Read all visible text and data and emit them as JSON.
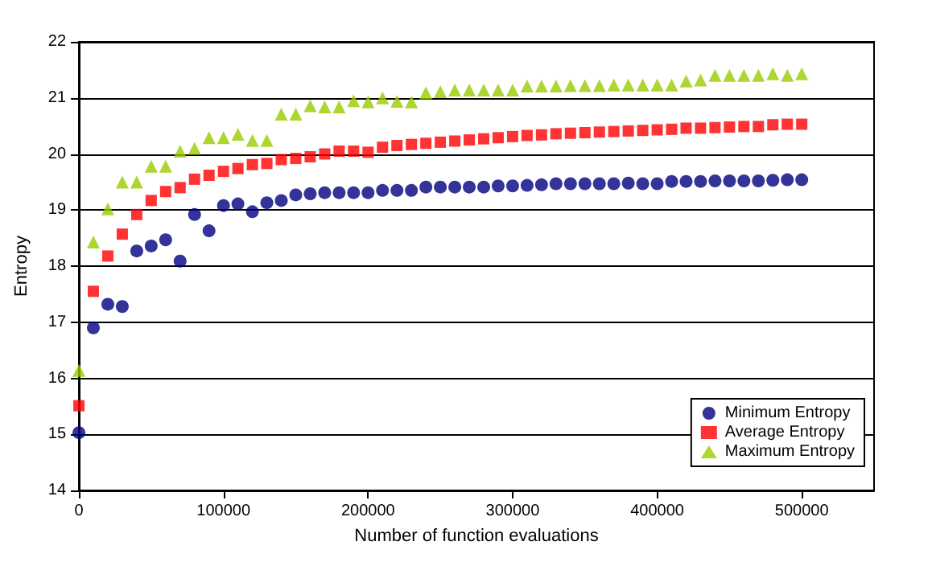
{
  "chart_data": {
    "type": "scatter",
    "xlabel": "Number of function evaluations",
    "ylabel": "Entropy",
    "x": [
      0,
      10000,
      20000,
      30000,
      40000,
      50000,
      60000,
      70000,
      80000,
      90000,
      100000,
      110000,
      120000,
      130000,
      140000,
      150000,
      160000,
      170000,
      180000,
      190000,
      200000,
      210000,
      220000,
      230000,
      240000,
      250000,
      260000,
      270000,
      280000,
      290000,
      300000,
      310000,
      320000,
      330000,
      340000,
      350000,
      360000,
      370000,
      380000,
      390000,
      400000,
      410000,
      420000,
      430000,
      440000,
      450000,
      460000,
      470000,
      480000,
      490000,
      500000
    ],
    "series": [
      {
        "name": "Minimum Entropy",
        "color": "#000080",
        "marker": "circle",
        "values": [
          15.03,
          16.9,
          17.32,
          17.28,
          18.27,
          18.36,
          18.47,
          18.09,
          18.92,
          18.63,
          19.08,
          19.11,
          18.97,
          19.13,
          19.17,
          19.27,
          19.29,
          19.31,
          19.31,
          19.31,
          19.31,
          19.35,
          19.35,
          19.35,
          19.41,
          19.41,
          19.41,
          19.41,
          19.41,
          19.43,
          19.43,
          19.44,
          19.45,
          19.47,
          19.47,
          19.47,
          19.47,
          19.47,
          19.48,
          19.47,
          19.47,
          19.51,
          19.51,
          19.51,
          19.52,
          19.52,
          19.52,
          19.52,
          19.53,
          19.54,
          19.54
        ]
      },
      {
        "name": "Average Entropy",
        "color": "#ff0000",
        "marker": "square",
        "values": [
          15.51,
          17.55,
          18.18,
          18.57,
          18.92,
          19.17,
          19.33,
          19.4,
          19.55,
          19.62,
          19.69,
          19.74,
          19.81,
          19.83,
          19.9,
          19.92,
          19.95,
          20.0,
          20.05,
          20.05,
          20.03,
          20.12,
          20.15,
          20.17,
          20.19,
          20.21,
          20.23,
          20.25,
          20.27,
          20.29,
          20.31,
          20.33,
          20.34,
          20.36,
          20.37,
          20.38,
          20.39,
          20.4,
          20.41,
          20.42,
          20.43,
          20.44,
          20.46,
          20.46,
          20.47,
          20.48,
          20.49,
          20.49,
          20.52,
          20.53,
          20.53
        ]
      },
      {
        "name": "Maximum Entropy",
        "color": "#99cc00",
        "marker": "triangle",
        "values": [
          16.14,
          18.43,
          19.02,
          19.5,
          19.5,
          19.78,
          19.78,
          20.05,
          20.1,
          20.29,
          20.29,
          20.35,
          20.24,
          20.24,
          20.71,
          20.71,
          20.86,
          20.84,
          20.84,
          20.95,
          20.93,
          21.0,
          20.94,
          20.93,
          21.09,
          21.11,
          21.14,
          21.14,
          21.14,
          21.14,
          21.14,
          21.21,
          21.21,
          21.21,
          21.22,
          21.22,
          21.22,
          21.23,
          21.23,
          21.23,
          21.23,
          21.23,
          21.3,
          21.32,
          21.4,
          21.4,
          21.4,
          21.4,
          21.43,
          21.4,
          21.43
        ]
      }
    ],
    "xlim": [
      0,
      550000
    ],
    "xticks": [
      0,
      100000,
      200000,
      300000,
      400000,
      500000
    ],
    "ylim": [
      14,
      22
    ],
    "yticks": [
      14,
      15,
      16,
      17,
      18,
      19,
      20,
      21,
      22
    ],
    "grid": "y",
    "legend": "bottom right"
  }
}
